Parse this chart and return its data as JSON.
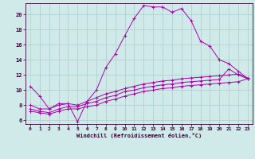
{
  "title": "",
  "xlabel": "Windchill (Refroidissement éolien,°C)",
  "ylabel": "",
  "xlim": [
    -0.5,
    23.5
  ],
  "ylim": [
    5.5,
    21.5
  ],
  "xticks": [
    0,
    1,
    2,
    3,
    4,
    5,
    6,
    7,
    8,
    9,
    10,
    11,
    12,
    13,
    14,
    15,
    16,
    17,
    18,
    19,
    20,
    21,
    22,
    23
  ],
  "yticks": [
    6,
    8,
    10,
    12,
    14,
    16,
    18,
    20
  ],
  "background_color": "#d0eaea",
  "line_color": "#aa00aa",
  "grid_color": "#aacccc",
  "lines": [
    {
      "x": [
        0,
        1,
        2,
        3,
        4,
        5,
        6,
        7,
        8,
        9,
        10,
        11,
        12,
        13,
        14,
        15,
        16,
        17,
        18,
        19,
        20,
        21,
        22,
        23
      ],
      "y": [
        10.5,
        9.2,
        7.5,
        8.2,
        8.2,
        5.8,
        8.5,
        10.0,
        13.0,
        14.8,
        17.2,
        19.5,
        21.2,
        21.0,
        21.0,
        20.3,
        20.8,
        19.2,
        16.5,
        15.8,
        14.0,
        13.5,
        12.5,
        11.5
      ]
    },
    {
      "x": [
        0,
        1,
        2,
        3,
        4,
        5,
        6,
        7,
        8,
        9,
        10,
        11,
        12,
        13,
        14,
        15,
        16,
        17,
        18,
        19,
        20,
        21,
        22,
        23
      ],
      "y": [
        8.0,
        7.5,
        7.5,
        8.0,
        8.2,
        8.0,
        8.5,
        9.0,
        9.5,
        9.8,
        10.2,
        10.5,
        10.8,
        11.0,
        11.2,
        11.3,
        11.5,
        11.6,
        11.7,
        11.8,
        11.9,
        12.0,
        12.1,
        11.6
      ]
    },
    {
      "x": [
        0,
        1,
        2,
        3,
        4,
        5,
        6,
        7,
        8,
        9,
        10,
        11,
        12,
        13,
        14,
        15,
        16,
        17,
        18,
        19,
        20,
        21,
        22,
        23
      ],
      "y": [
        7.5,
        7.2,
        7.0,
        7.5,
        7.8,
        7.8,
        8.2,
        8.5,
        9.0,
        9.3,
        9.8,
        10.0,
        10.3,
        10.5,
        10.7,
        10.8,
        11.0,
        11.1,
        11.2,
        11.3,
        11.4,
        12.8,
        12.0,
        11.5
      ]
    },
    {
      "x": [
        0,
        1,
        2,
        3,
        4,
        5,
        6,
        7,
        8,
        9,
        10,
        11,
        12,
        13,
        14,
        15,
        16,
        17,
        18,
        19,
        20,
        21,
        22,
        23
      ],
      "y": [
        7.2,
        7.0,
        6.8,
        7.2,
        7.5,
        7.5,
        7.8,
        8.0,
        8.5,
        8.8,
        9.2,
        9.5,
        9.8,
        10.0,
        10.2,
        10.3,
        10.5,
        10.6,
        10.7,
        10.8,
        10.9,
        11.0,
        11.1,
        11.5
      ]
    }
  ]
}
